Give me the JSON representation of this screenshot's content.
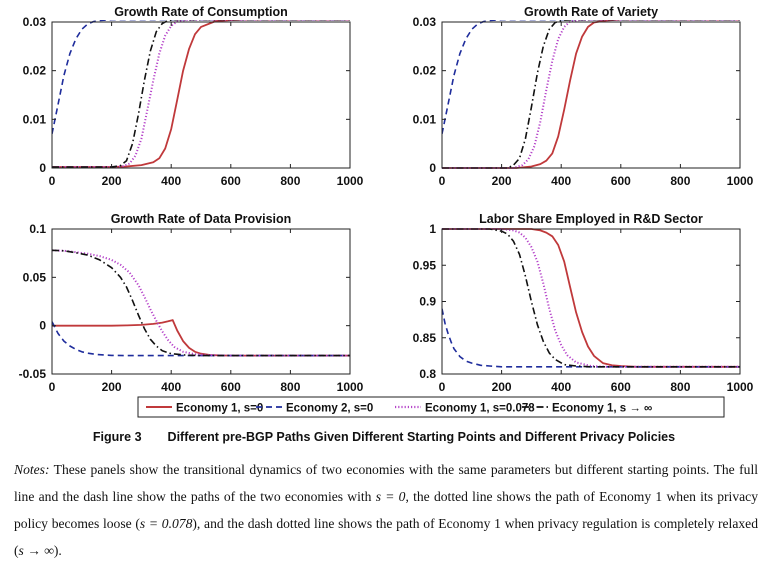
{
  "figure": {
    "number": "Figure 3",
    "title": "Different pre-BGP Paths Given Different Starting Points and Different Privacy Policies"
  },
  "notes": {
    "label": "Notes:",
    "text1": "These panels show the transitional dynamics of two economies with the same parameters but different starting points. The full line and the dash line show the paths of the two economies with",
    "math1": "s = 0",
    "text2": ", the dotted line shows the path of Economy 1 when its privacy policy becomes loose (",
    "math2": "s = 0.078",
    "text3": "), and the dash dotted line shows the path of Economy 1 when privacy regulation is completely relaxed (",
    "math3": "s → ∞",
    "text4": ")."
  },
  "legend": [
    {
      "label": "Economy 1, s=0",
      "color": "#c0393b",
      "style": "solid"
    },
    {
      "label": "Economy 2, s=0",
      "color": "#1f2d9c",
      "style": "dash"
    },
    {
      "label": "Economy 1, s=0.078",
      "color": "#b543c9",
      "style": "dotted"
    },
    {
      "label": "Economy 1, s → ∞",
      "color": "#111111",
      "style": "dashdot"
    }
  ],
  "chart_data": [
    {
      "type": "line",
      "title": "Growth Rate of Consumption",
      "xlim": [
        0,
        1000
      ],
      "ylim": [
        0,
        0.03
      ],
      "xticks": [
        "0",
        "200",
        "400",
        "600",
        "800",
        "1000"
      ],
      "yticks": [
        "0",
        "0.01",
        "0.02",
        "0.03"
      ],
      "series": [
        {
          "name": "Economy 1, s=0",
          "x": [
            0,
            200,
            250,
            300,
            340,
            360,
            380,
            400,
            420,
            440,
            460,
            480,
            500,
            550,
            600,
            650,
            1000
          ],
          "y": [
            0.0002,
            0.0002,
            0.0003,
            0.0006,
            0.0012,
            0.002,
            0.004,
            0.008,
            0.014,
            0.02,
            0.0245,
            0.0275,
            0.029,
            0.0302,
            0.0304,
            0.0305,
            0.0305
          ]
        },
        {
          "name": "Economy 2, s=0",
          "x": [
            0,
            20,
            40,
            60,
            80,
            100,
            120,
            140,
            160,
            180,
            200,
            250,
            1000
          ],
          "y": [
            0.007,
            0.013,
            0.019,
            0.0235,
            0.0265,
            0.0285,
            0.0296,
            0.0301,
            0.0303,
            0.0304,
            0.0305,
            0.0305,
            0.0305
          ]
        },
        {
          "name": "Economy 1, s=0.078",
          "x": [
            0,
            200,
            240,
            260,
            280,
            300,
            320,
            340,
            360,
            380,
            400,
            420,
            450,
            500,
            550,
            1000
          ],
          "y": [
            0.0002,
            0.0002,
            0.0004,
            0.0009,
            0.0025,
            0.006,
            0.012,
            0.018,
            0.0235,
            0.0272,
            0.0292,
            0.0301,
            0.0304,
            0.0305,
            0.0305,
            0.0305
          ]
        },
        {
          "name": "Economy 1, s → ∞",
          "x": [
            0,
            200,
            230,
            250,
            270,
            290,
            310,
            330,
            350,
            370,
            390,
            420,
            450,
            500,
            1000
          ],
          "y": [
            0.0002,
            0.0002,
            0.0005,
            0.0015,
            0.005,
            0.011,
            0.018,
            0.024,
            0.028,
            0.0297,
            0.0303,
            0.0305,
            0.0305,
            0.0305,
            0.0305
          ]
        }
      ]
    },
    {
      "type": "line",
      "title": "Growth Rate of Variety",
      "xlim": [
        0,
        1000
      ],
      "ylim": [
        0,
        0.03
      ],
      "xticks": [
        "0",
        "200",
        "400",
        "600",
        "800",
        "1000"
      ],
      "yticks": [
        "0",
        "0.01",
        "0.02",
        "0.03"
      ],
      "series": [
        {
          "name": "Economy 1, s=0",
          "x": [
            0,
            250,
            300,
            330,
            350,
            370,
            390,
            410,
            430,
            450,
            470,
            490,
            510,
            550,
            600,
            650,
            1000
          ],
          "y": [
            0,
            0,
            0.0003,
            0.0008,
            0.0015,
            0.003,
            0.0065,
            0.012,
            0.018,
            0.0235,
            0.027,
            0.029,
            0.0299,
            0.0303,
            0.0305,
            0.0305,
            0.0305
          ]
        },
        {
          "name": "Economy 2, s=0",
          "x": [
            0,
            20,
            40,
            60,
            80,
            100,
            120,
            140,
            160,
            180,
            200,
            250,
            1000
          ],
          "y": [
            0.007,
            0.013,
            0.019,
            0.0235,
            0.0265,
            0.0285,
            0.0296,
            0.0301,
            0.0303,
            0.0304,
            0.0305,
            0.0305,
            0.0305
          ]
        },
        {
          "name": "Economy 1, s=0.078",
          "x": [
            0,
            240,
            270,
            290,
            310,
            330,
            350,
            370,
            390,
            410,
            430,
            460,
            500,
            550,
            1000
          ],
          "y": [
            0,
            0,
            0.0006,
            0.0018,
            0.0045,
            0.0095,
            0.016,
            0.022,
            0.0265,
            0.029,
            0.0301,
            0.0304,
            0.0305,
            0.0305,
            0.0305
          ]
        },
        {
          "name": "Economy 1, s → ∞",
          "x": [
            0,
            220,
            240,
            260,
            280,
            300,
            320,
            340,
            360,
            380,
            410,
            450,
            500,
            1000
          ],
          "y": [
            0,
            0,
            0.0006,
            0.002,
            0.006,
            0.0125,
            0.0195,
            0.025,
            0.0285,
            0.0299,
            0.0304,
            0.0305,
            0.0305,
            0.0305
          ]
        }
      ]
    },
    {
      "type": "line",
      "title": "Growth Rate of Data Provision",
      "xlim": [
        0,
        1000
      ],
      "ylim": [
        -0.05,
        0.1
      ],
      "xticks": [
        "0",
        "200",
        "400",
        "600",
        "800",
        "1000"
      ],
      "yticks": [
        "-0.05",
        "0",
        "0.05",
        "0.1"
      ],
      "series": [
        {
          "name": "Economy 1, s=0",
          "x": [
            0,
            100,
            200,
            250,
            300,
            340,
            370,
            390,
            405,
            420,
            440,
            460,
            480,
            500,
            530,
            560,
            600,
            650,
            1000
          ],
          "y": [
            0,
            0,
            0,
            0.0003,
            0.0008,
            0.0018,
            0.0032,
            0.0045,
            0.0058,
            -0.005,
            -0.016,
            -0.023,
            -0.027,
            -0.029,
            -0.0303,
            -0.0308,
            -0.031,
            -0.031,
            -0.031
          ]
        },
        {
          "name": "Economy 2, s=0",
          "x": [
            0,
            20,
            40,
            60,
            80,
            100,
            120,
            150,
            180,
            200,
            250,
            1000
          ],
          "y": [
            0.004,
            -0.008,
            -0.016,
            -0.021,
            -0.0245,
            -0.027,
            -0.0285,
            -0.0298,
            -0.0305,
            -0.0308,
            -0.031,
            -0.031
          ]
        },
        {
          "name": "Economy 1, s=0.078",
          "x": [
            0,
            40,
            80,
            120,
            160,
            200,
            230,
            260,
            290,
            310,
            330,
            350,
            370,
            390,
            410,
            440,
            480,
            520,
            600,
            1000
          ],
          "y": [
            0.078,
            0.0775,
            0.076,
            0.0745,
            0.072,
            0.068,
            0.063,
            0.055,
            0.042,
            0.03,
            0.017,
            0.005,
            -0.006,
            -0.015,
            -0.022,
            -0.027,
            -0.0295,
            -0.0305,
            -0.031,
            -0.031
          ]
        },
        {
          "name": "Economy 1, s → ∞",
          "x": [
            0,
            40,
            80,
            120,
            160,
            200,
            230,
            250,
            270,
            290,
            310,
            330,
            350,
            370,
            400,
            450,
            500,
            1000
          ],
          "y": [
            0.078,
            0.0775,
            0.0755,
            0.073,
            0.068,
            0.06,
            0.05,
            0.04,
            0.026,
            0.011,
            -0.003,
            -0.014,
            -0.021,
            -0.026,
            -0.029,
            -0.0305,
            -0.031,
            -0.031
          ]
        }
      ]
    },
    {
      "type": "line",
      "title": "Labor Share Employed in R&D Sector",
      "xlim": [
        0,
        1000
      ],
      "ylim": [
        0.8,
        1
      ],
      "xticks": [
        "0",
        "200",
        "400",
        "600",
        "800",
        "1000"
      ],
      "yticks": [
        "0.8",
        "0.85",
        "0.9",
        "0.95",
        "1"
      ],
      "series": [
        {
          "name": "Economy 1, s=0",
          "x": [
            0,
            200,
            300,
            330,
            350,
            370,
            390,
            410,
            430,
            450,
            470,
            490,
            510,
            540,
            570,
            600,
            650,
            1000
          ],
          "y": [
            1,
            1,
            1,
            0.998,
            0.995,
            0.99,
            0.978,
            0.955,
            0.92,
            0.885,
            0.858,
            0.838,
            0.825,
            0.815,
            0.812,
            0.811,
            0.81,
            0.81
          ]
        },
        {
          "name": "Economy 2, s=0",
          "x": [
            0,
            10,
            20,
            30,
            40,
            60,
            80,
            100,
            130,
            160,
            200,
            1000
          ],
          "y": [
            0.89,
            0.87,
            0.856,
            0.845,
            0.835,
            0.824,
            0.818,
            0.815,
            0.812,
            0.811,
            0.81,
            0.81
          ]
        },
        {
          "name": "Economy 1, s=0.078",
          "x": [
            0,
            200,
            240,
            260,
            280,
            300,
            320,
            340,
            360,
            380,
            400,
            420,
            450,
            500,
            550,
            1000
          ],
          "y": [
            1,
            1,
            0.998,
            0.995,
            0.988,
            0.975,
            0.955,
            0.925,
            0.89,
            0.86,
            0.84,
            0.826,
            0.816,
            0.811,
            0.81,
            0.81
          ]
        },
        {
          "name": "Economy 1, s → ∞",
          "x": [
            0,
            160,
            200,
            220,
            240,
            260,
            280,
            300,
            320,
            340,
            360,
            380,
            410,
            450,
            500,
            1000
          ],
          "y": [
            1,
            1,
            0.997,
            0.993,
            0.983,
            0.965,
            0.935,
            0.9,
            0.868,
            0.845,
            0.829,
            0.82,
            0.813,
            0.811,
            0.81,
            0.81
          ]
        }
      ]
    }
  ]
}
